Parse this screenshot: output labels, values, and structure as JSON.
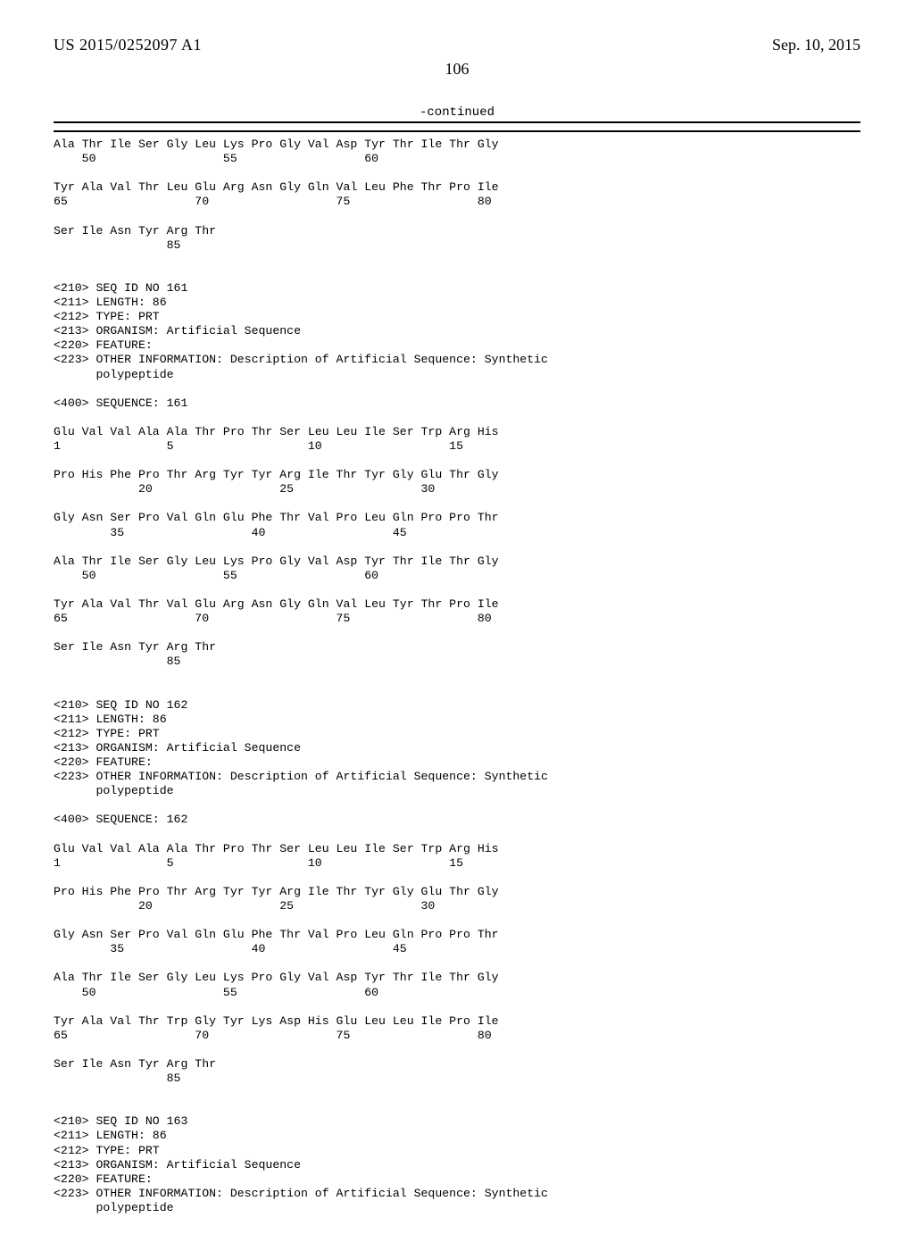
{
  "header": {
    "publication_number": "US 2015/0252097 A1",
    "publication_date": "Sep. 10, 2015"
  },
  "page_number": "106",
  "continued_label": "-continued",
  "listing_text": "Ala Thr Ile Ser Gly Leu Lys Pro Gly Val Asp Tyr Thr Ile Thr Gly\n    50                  55                  60\n\nTyr Ala Val Thr Leu Glu Arg Asn Gly Gln Val Leu Phe Thr Pro Ile\n65                  70                  75                  80\n\nSer Ile Asn Tyr Arg Thr\n                85\n\n\n<210> SEQ ID NO 161\n<211> LENGTH: 86\n<212> TYPE: PRT\n<213> ORGANISM: Artificial Sequence\n<220> FEATURE:\n<223> OTHER INFORMATION: Description of Artificial Sequence: Synthetic\n      polypeptide\n\n<400> SEQUENCE: 161\n\nGlu Val Val Ala Ala Thr Pro Thr Ser Leu Leu Ile Ser Trp Arg His\n1               5                   10                  15\n\nPro His Phe Pro Thr Arg Tyr Tyr Arg Ile Thr Tyr Gly Glu Thr Gly\n            20                  25                  30\n\nGly Asn Ser Pro Val Gln Glu Phe Thr Val Pro Leu Gln Pro Pro Thr\n        35                  40                  45\n\nAla Thr Ile Ser Gly Leu Lys Pro Gly Val Asp Tyr Thr Ile Thr Gly\n    50                  55                  60\n\nTyr Ala Val Thr Val Glu Arg Asn Gly Gln Val Leu Tyr Thr Pro Ile\n65                  70                  75                  80\n\nSer Ile Asn Tyr Arg Thr\n                85\n\n\n<210> SEQ ID NO 162\n<211> LENGTH: 86\n<212> TYPE: PRT\n<213> ORGANISM: Artificial Sequence\n<220> FEATURE:\n<223> OTHER INFORMATION: Description of Artificial Sequence: Synthetic\n      polypeptide\n\n<400> SEQUENCE: 162\n\nGlu Val Val Ala Ala Thr Pro Thr Ser Leu Leu Ile Ser Trp Arg His\n1               5                   10                  15\n\nPro His Phe Pro Thr Arg Tyr Tyr Arg Ile Thr Tyr Gly Glu Thr Gly\n            20                  25                  30\n\nGly Asn Ser Pro Val Gln Glu Phe Thr Val Pro Leu Gln Pro Pro Thr\n        35                  40                  45\n\nAla Thr Ile Ser Gly Leu Lys Pro Gly Val Asp Tyr Thr Ile Thr Gly\n    50                  55                  60\n\nTyr Ala Val Thr Trp Gly Tyr Lys Asp His Glu Leu Leu Ile Pro Ile\n65                  70                  75                  80\n\nSer Ile Asn Tyr Arg Thr\n                85\n\n\n<210> SEQ ID NO 163\n<211> LENGTH: 86\n<212> TYPE: PRT\n<213> ORGANISM: Artificial Sequence\n<220> FEATURE:\n<223> OTHER INFORMATION: Description of Artificial Sequence: Synthetic\n      polypeptide"
}
